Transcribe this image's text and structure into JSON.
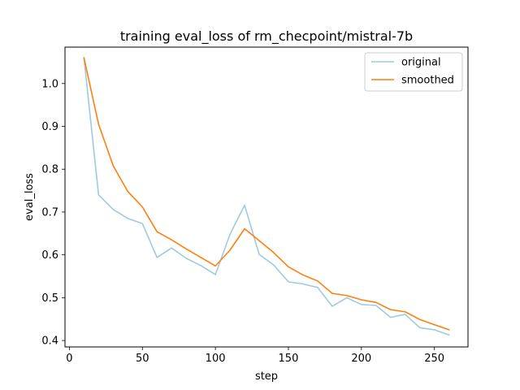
{
  "chart_data": {
    "type": "line",
    "title": "training eval_loss of rm_checpoint/mistral-7b",
    "xlabel": "step",
    "ylabel": "eval_loss",
    "xlim": [
      -3,
      273
    ],
    "ylim": [
      0.385,
      1.085
    ],
    "xticks": [
      0,
      50,
      100,
      150,
      200,
      250
    ],
    "yticks": [
      0.4,
      0.5,
      0.6,
      0.7,
      0.8,
      0.9,
      1.0
    ],
    "xtick_labels": [
      "0",
      "50",
      "100",
      "150",
      "200",
      "250"
    ],
    "ytick_labels": [
      "0.4",
      "0.5",
      "0.6",
      "0.7",
      "0.8",
      "0.9",
      "1.0"
    ],
    "grid": false,
    "legend_position": "top-right",
    "x": [
      10,
      20,
      30,
      40,
      50,
      60,
      70,
      80,
      90,
      100,
      110,
      120,
      130,
      140,
      150,
      160,
      170,
      180,
      190,
      200,
      210,
      220,
      230,
      240,
      250,
      260
    ],
    "series": [
      {
        "name": "original",
        "color": "#9ecae1",
        "values": [
          1.06,
          0.74,
          0.706,
          0.685,
          0.673,
          0.594,
          0.616,
          0.592,
          0.575,
          0.554,
          0.648,
          0.716,
          0.601,
          0.576,
          0.537,
          0.532,
          0.524,
          0.48,
          0.5,
          0.484,
          0.482,
          0.454,
          0.461,
          0.43,
          0.425,
          0.413
        ]
      },
      {
        "name": "smoothed",
        "color": "#ff7f0e",
        "values": [
          1.06,
          0.905,
          0.808,
          0.748,
          0.712,
          0.654,
          0.635,
          0.614,
          0.594,
          0.574,
          0.611,
          0.661,
          0.633,
          0.605,
          0.572,
          0.553,
          0.539,
          0.51,
          0.505,
          0.495,
          0.489,
          0.472,
          0.467,
          0.449,
          0.437,
          0.425
        ]
      }
    ]
  }
}
